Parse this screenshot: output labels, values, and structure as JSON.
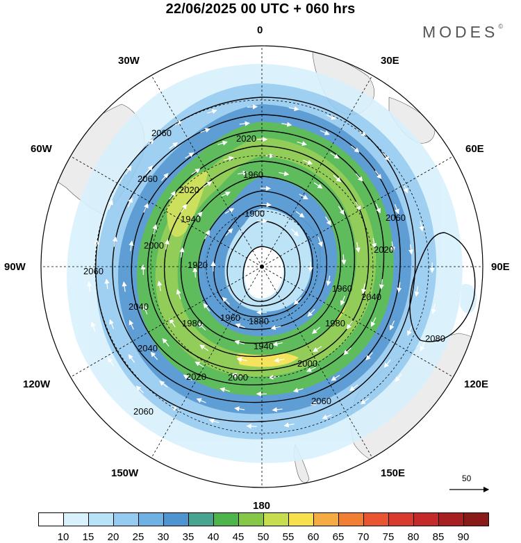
{
  "header": {
    "title": "22/06/2025  00 UTC  + 060 hrs",
    "brand": "MODES",
    "brand_mark": "©"
  },
  "map": {
    "projection": "south-polar-stereographic",
    "longitude_labels": [
      "0",
      "30E",
      "60E",
      "90E",
      "120E",
      "150E",
      "180",
      "150W",
      "120W",
      "90W",
      "60W",
      "30W"
    ],
    "contour_labels": [
      "2060",
      "2020",
      "1960",
      "2020",
      "2060",
      "1940",
      "1900",
      "2000",
      "1920",
      "1880",
      "1960",
      "2020",
      "2040",
      "2060",
      "2060",
      "2040",
      "1980",
      "1960",
      "1980",
      "1940",
      "2000",
      "2080",
      "2040",
      "2020",
      "2000",
      "2060",
      "2060"
    ],
    "land_color": "#ececec",
    "reference_vector": {
      "label": "50",
      "value": 50
    }
  },
  "colorbar": {
    "ticks": [
      "10",
      "15",
      "20",
      "25",
      "30",
      "35",
      "40",
      "45",
      "50",
      "55",
      "60",
      "65",
      "70",
      "75",
      "80",
      "85",
      "90"
    ],
    "colors": [
      "#ffffff",
      "#d8f1fc",
      "#b8e2f8",
      "#95cbf0",
      "#6fb1e3",
      "#4e94d0",
      "#48a390",
      "#4db54b",
      "#87c748",
      "#c7dd4d",
      "#f6e04c",
      "#f4ac42",
      "#f07e33",
      "#e95530",
      "#d93a2e",
      "#c42a2a",
      "#a81f22",
      "#8a1a18"
    ]
  }
}
